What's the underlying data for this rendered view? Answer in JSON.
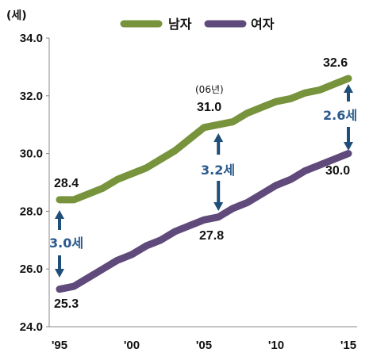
{
  "chart_data": {
    "type": "line",
    "unit_label": "(세)",
    "x": [
      1995,
      1996,
      1997,
      1998,
      1999,
      2000,
      2001,
      2002,
      2003,
      2004,
      2005,
      2006,
      2007,
      2008,
      2009,
      2010,
      2011,
      2012,
      2013,
      2014,
      2015
    ],
    "xtick_labels": [
      "'95",
      "'00",
      "'05",
      "'10",
      "'15"
    ],
    "xtick_values": [
      1995,
      2000,
      2005,
      2010,
      2015
    ],
    "ytick_labels": [
      "24.0",
      "26.0",
      "28.0",
      "30.0",
      "32.0",
      "34.0"
    ],
    "ytick_values": [
      24,
      26,
      28,
      30,
      32,
      34
    ],
    "ylim": [
      24,
      34
    ],
    "series": [
      {
        "name": "남자",
        "color": "#77933c",
        "values": [
          28.4,
          28.4,
          28.6,
          28.8,
          29.1,
          29.3,
          29.5,
          29.8,
          30.1,
          30.5,
          30.9,
          31.0,
          31.1,
          31.4,
          31.6,
          31.8,
          31.9,
          32.1,
          32.2,
          32.4,
          32.6
        ]
      },
      {
        "name": "여자",
        "color": "#604a7b",
        "values": [
          25.3,
          25.4,
          25.7,
          26.0,
          26.3,
          26.5,
          26.8,
          27.0,
          27.3,
          27.5,
          27.7,
          27.8,
          28.1,
          28.3,
          28.6,
          28.9,
          29.1,
          29.4,
          29.6,
          29.8,
          30.0
        ]
      }
    ],
    "data_labels": {
      "male_start": "28.4",
      "female_start": "25.3",
      "male_2006": "31.0",
      "female_2006": "27.8",
      "male_end": "32.6",
      "female_end": "30.0",
      "note_2006": "(06년)"
    },
    "gap_labels": {
      "g1995": "3.0세",
      "g2006": "3.2세",
      "g2015": "2.6세"
    },
    "arrow_color": "#1f4e79",
    "legend_position": "top"
  }
}
